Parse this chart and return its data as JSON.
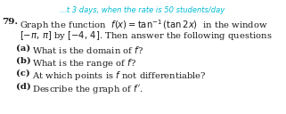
{
  "header_text": "...t 3 days, when the rate is 50 students/day",
  "header_color": "#00bcd4",
  "body_color": "#1a1a1a",
  "bg_color": "#ffffff",
  "header_fontsize": 6.0,
  "number_fontsize": 7.5,
  "body_fontsize": 7.2,
  "item_fontsize": 7.2,
  "fig_width": 3.21,
  "fig_height": 1.28,
  "dpi": 100
}
